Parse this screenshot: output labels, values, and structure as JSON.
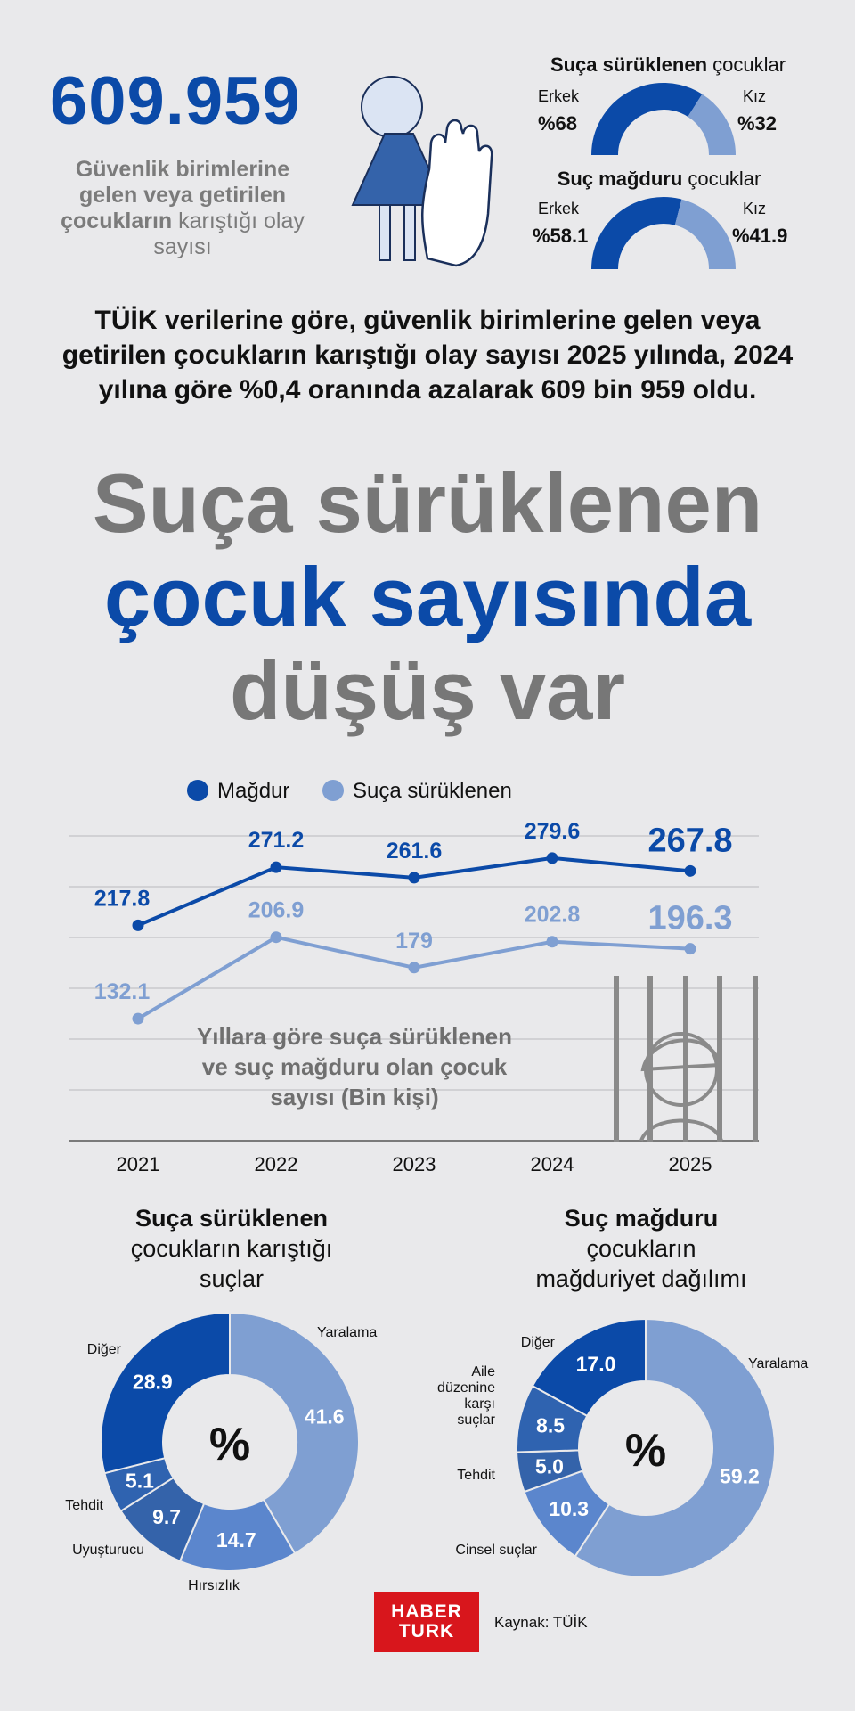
{
  "top": {
    "big_number": "609.959",
    "desc_bold1": "Güvenlik birimlerine gelen veya getirilen çocukların",
    "desc_rest": " karıştığı olay sayısı"
  },
  "gauges": [
    {
      "title_bold": "Suça sürüklenen",
      "title_rest": " çocuklar",
      "left_label": "Erkek",
      "left_value": "%68",
      "right_label": "Kız",
      "right_value": "%32",
      "left_fraction": 0.68
    },
    {
      "title_bold": "Suç mağduru",
      "title_rest": " çocuklar",
      "left_label": "Erkek",
      "left_value": "%58.1",
      "right_label": "Kız",
      "right_value": "%41.9",
      "left_fraction": 0.581
    }
  ],
  "lead_text": "TÜİK verilerine göre, güvenlik birimlerine gelen veya getirilen çocukların karıştığı olay sayısı 2025 yılında, 2024 yılına göre %0,4 oranında azalarak 609 bin 959 oldu.",
  "headline": {
    "line1": "Suça sürüklenen",
    "line2": "çocuk sayısında",
    "line3": "düşüş var"
  },
  "colors": {
    "dark_blue": "#0b4aa8",
    "light_blue": "#7f9fd2",
    "mid_blue": "#2f63b0",
    "grey": "#777777",
    "brand_red": "#d8161c"
  },
  "chart_data": [
    {
      "type": "line",
      "title": "Yıllara göre suça sürüklenen ve suç mağduru olan çocuk sayısı (Bin kişi)",
      "categories": [
        "2021",
        "2022",
        "2023",
        "2024",
        "2025"
      ],
      "series": [
        {
          "name": "Mağdur",
          "color": "#0b4aa8",
          "values": [
            217.8,
            271.2,
            261.6,
            279.6,
            267.8
          ]
        },
        {
          "name": "Suça sürüklenen",
          "color": "#7f9fd2",
          "values": [
            132.1,
            206.9,
            179,
            202.8,
            196.3
          ]
        }
      ],
      "ylim": [
        20,
        300
      ],
      "grid": true,
      "legend": "top-left"
    },
    {
      "type": "pie",
      "title": "Suça sürüklenen çocukların karıştığı suçlar",
      "center_label": "%",
      "slices": [
        {
          "label": "Yaralama",
          "value": 41.6,
          "color": "#7f9fd2"
        },
        {
          "label": "Hırsızlık",
          "value": 14.7,
          "color": "#5b86cd"
        },
        {
          "label": "Uyuşturucu",
          "value": 9.7,
          "color": "#3463aa"
        },
        {
          "label": "Tehdit",
          "value": 5.1,
          "color": "#2f63b0"
        },
        {
          "label": "Diğer",
          "value": 28.9,
          "color": "#0b4aa8"
        }
      ]
    },
    {
      "type": "pie",
      "title": "Suç mağduru çocukların mağduriyet dağılımı",
      "center_label": "%",
      "slices": [
        {
          "label": "Yaralama",
          "value": 59.2,
          "color": "#7f9fd2"
        },
        {
          "label": "Cinsel suçlar",
          "value": 10.3,
          "color": "#5b86cd"
        },
        {
          "label": "Tehdit",
          "value": 5.0,
          "color": "#3463aa"
        },
        {
          "label": "Aile düzenine karşı suçlar",
          "value": 8.5,
          "color": "#2f63b0"
        },
        {
          "label": "Diğer",
          "value": 17.0,
          "color": "#0b4aa8"
        }
      ]
    }
  ],
  "donut_titles": [
    {
      "bold": "Suça sürüklenen",
      "rest1": "çocukların karıştığı",
      "rest2": "suçlar"
    },
    {
      "bold": "Suç mağduru",
      "rest1": "çocukların",
      "rest2": "mağduriyet dağılımı"
    }
  ],
  "footer": {
    "logo_line1": "HABER",
    "logo_line2": "TURK",
    "source": "Kaynak: TÜİK"
  }
}
